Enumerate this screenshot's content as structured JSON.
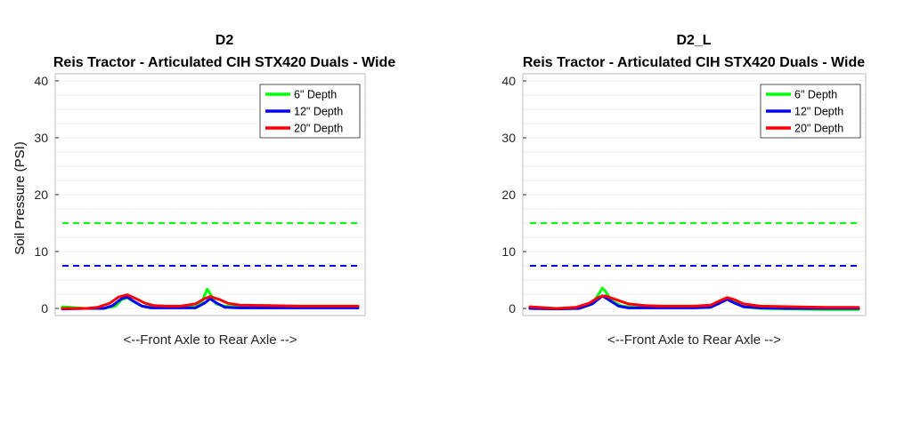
{
  "chart_data": [
    {
      "type": "line",
      "title": "D2",
      "subtitle": "Reis Tractor - Articulated CIH  STX420 Duals - Wide",
      "xlabel": "<--Front Axle to Rear Axle -->",
      "ylabel": "Soil Pressure (PSI)",
      "ylim": [
        0,
        40
      ],
      "yticks": [
        0,
        10,
        20,
        30,
        40
      ],
      "xlim": [
        0,
        100
      ],
      "grid": "y-minor",
      "legend_position": "top-right",
      "series": [
        {
          "name": "6\" Depth",
          "color": "#00ff00",
          "x": [
            0,
            8,
            14,
            18,
            20,
            22,
            24,
            27,
            30,
            40,
            45,
            47,
            48,
            49,
            50,
            52,
            55,
            60,
            70,
            80,
            90,
            100
          ],
          "y": [
            0.3,
            0,
            0,
            0.4,
            1.5,
            1.9,
            1.2,
            0.4,
            0.2,
            0.2,
            0.3,
            0.8,
            2.2,
            3.4,
            2.6,
            0.8,
            0.4,
            0.3,
            0.3,
            0.2,
            0.2,
            0.2
          ]
        },
        {
          "name": "12\" Depth",
          "color": "#0000ff",
          "x": [
            0,
            8,
            14,
            17,
            20,
            22,
            24,
            27,
            30,
            40,
            45,
            48,
            50,
            52,
            55,
            60,
            70,
            80,
            90,
            100
          ],
          "y": [
            -0.1,
            0,
            0,
            0.5,
            1.7,
            2.0,
            1.3,
            0.4,
            0.1,
            0.1,
            0.1,
            0.9,
            1.7,
            1.0,
            0.2,
            0.1,
            0.1,
            0.1,
            0.1,
            0.1
          ]
        },
        {
          "name": "20\" Depth",
          "color": "#ff0000",
          "x": [
            0,
            8,
            12,
            16,
            19,
            22,
            25,
            28,
            31,
            35,
            40,
            45,
            48,
            50,
            53,
            56,
            60,
            70,
            80,
            90,
            100
          ],
          "y": [
            0,
            0,
            0.2,
            0.9,
            2.0,
            2.4,
            1.7,
            0.9,
            0.5,
            0.4,
            0.4,
            0.8,
            1.7,
            2.1,
            1.6,
            0.9,
            0.6,
            0.5,
            0.4,
            0.4,
            0.4
          ]
        }
      ],
      "reference_lines": [
        {
          "y": 15,
          "color": "#00ff00",
          "style": "dashed"
        },
        {
          "y": 7.5,
          "color": "#0000ff",
          "style": "dashed"
        }
      ]
    },
    {
      "type": "line",
      "title": "D2_L",
      "subtitle": "Reis Tractor - Articulated CIH  STX420 Duals - Wide",
      "xlabel": "<--Front Axle to Rear Axle -->",
      "ylabel": "Soil Pressure (PSI)",
      "ylim": [
        0,
        40
      ],
      "yticks": [
        0,
        10,
        20,
        30,
        40
      ],
      "xlim": [
        0,
        100
      ],
      "grid": "y-minor",
      "legend_position": "top-right",
      "series": [
        {
          "name": "6\" Depth",
          "color": "#00ff00",
          "x": [
            0,
            8,
            15,
            19,
            21,
            22,
            23,
            25,
            28,
            32,
            40,
            50,
            55,
            58,
            60,
            62,
            65,
            70,
            80,
            90,
            100
          ],
          "y": [
            0.2,
            0,
            0,
            0.9,
            2.6,
            3.6,
            3.0,
            1.3,
            0.4,
            0.2,
            0.2,
            0.2,
            0.3,
            1.1,
            1.9,
            1.2,
            0.3,
            0,
            -0.1,
            -0.2,
            -0.2
          ]
        },
        {
          "name": "12\" Depth",
          "color": "#0000ff",
          "x": [
            0,
            8,
            15,
            19,
            22,
            24,
            27,
            30,
            40,
            50,
            55,
            58,
            60,
            62,
            65,
            70,
            80,
            90,
            100
          ],
          "y": [
            0,
            -0.1,
            0,
            0.8,
            2.2,
            1.5,
            0.4,
            0.1,
            0.1,
            0.1,
            0.2,
            1.0,
            1.6,
            1.0,
            0.3,
            0.1,
            0,
            0,
            0
          ]
        },
        {
          "name": "20\" Depth",
          "color": "#ff0000",
          "x": [
            0,
            8,
            14,
            18,
            21,
            23,
            26,
            30,
            35,
            40,
            50,
            55,
            58,
            60,
            62,
            65,
            70,
            80,
            90,
            100
          ],
          "y": [
            0.3,
            0,
            0.2,
            0.9,
            2.0,
            2.2,
            1.6,
            0.8,
            0.5,
            0.4,
            0.4,
            0.6,
            1.4,
            1.9,
            1.6,
            0.8,
            0.4,
            0.3,
            0.2,
            0.2
          ]
        }
      ],
      "reference_lines": [
        {
          "y": 15,
          "color": "#00ff00",
          "style": "dashed"
        },
        {
          "y": 7.5,
          "color": "#0000ff",
          "style": "dashed"
        }
      ]
    }
  ]
}
